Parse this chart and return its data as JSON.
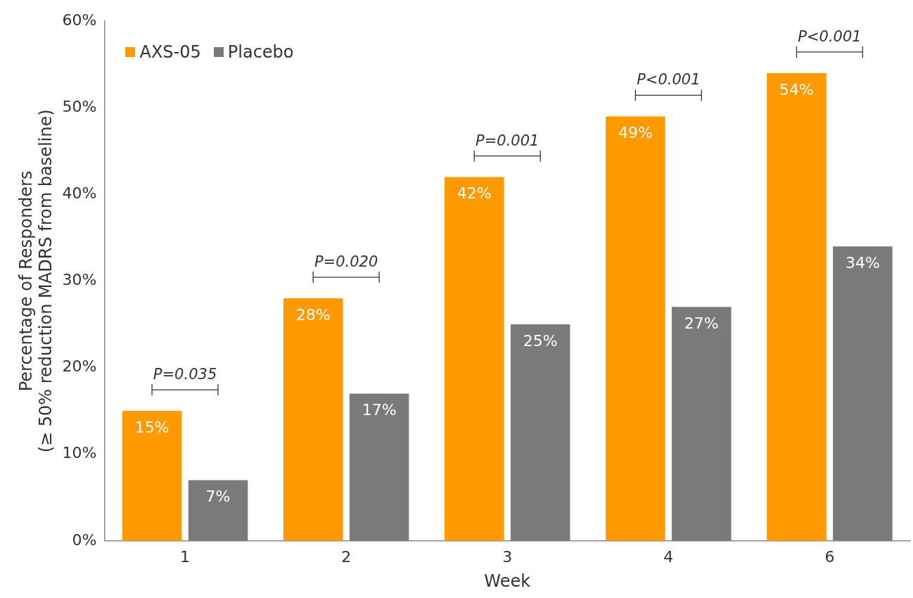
{
  "chart_data": {
    "type": "bar",
    "xlabel": "Week",
    "ylabel": "Percentage of Responders\n(≥ 50% reduction MADRS from baseline)",
    "categories": [
      "1",
      "2",
      "3",
      "4",
      "6"
    ],
    "series": [
      {
        "name": "AXS-05",
        "color": "#ff9900",
        "values": [
          15,
          28,
          42,
          49,
          54
        ],
        "value_labels": [
          "15%",
          "28%",
          "42%",
          "49%",
          "54%"
        ]
      },
      {
        "name": "Placebo",
        "color": "#7a7a7a",
        "values": [
          7,
          17,
          25,
          27,
          34
        ],
        "value_labels": [
          "7%",
          "17%",
          "25%",
          "27%",
          "34%"
        ]
      }
    ],
    "ylim": [
      0,
      60
    ],
    "yticks": [
      {
        "value": 0,
        "label": "0%"
      },
      {
        "value": 10,
        "label": "10%"
      },
      {
        "value": 20,
        "label": "20%"
      },
      {
        "value": 30,
        "label": "30%"
      },
      {
        "value": 40,
        "label": "40%"
      },
      {
        "value": 50,
        "label": "50%"
      },
      {
        "value": 60,
        "label": "60%"
      }
    ],
    "annotations": [
      "P=0.035",
      "P=0.020",
      "P=0.001",
      "P<0.001",
      "P<0.001"
    ],
    "legend": "top left",
    "grid": false
  }
}
